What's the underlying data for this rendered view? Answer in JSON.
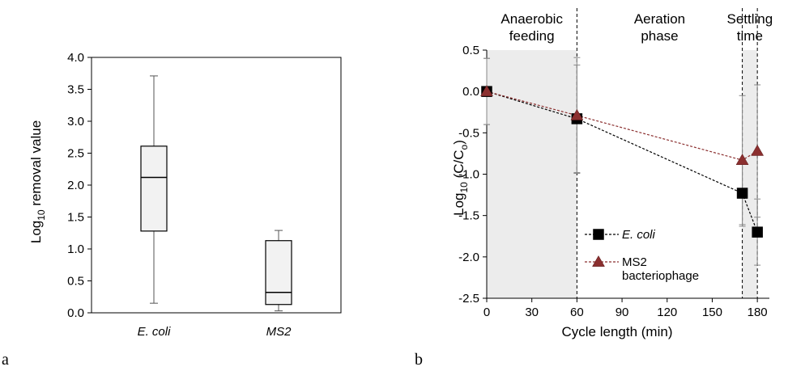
{
  "chart_data": [
    {
      "type": "box",
      "panel_label": "a",
      "ylabel": {
        "main": "Log",
        "sub": "10",
        "rest": " removal value"
      },
      "ylim": [
        0,
        4.0
      ],
      "yticks": [
        "0.0",
        "0.5",
        "1.0",
        "1.5",
        "2.0",
        "2.5",
        "3.0",
        "3.5",
        "4.0"
      ],
      "categories": [
        "E. coli",
        "MS2"
      ],
      "boxes": [
        {
          "category": "E. coli",
          "min": 0.15,
          "q1": 1.28,
          "median": 2.12,
          "q3": 2.61,
          "max": 3.71
        },
        {
          "category": "MS2",
          "min": 0.03,
          "q1": 0.13,
          "median": 0.32,
          "q3": 1.13,
          "max": 1.29
        }
      ],
      "box_fill": "#f2f2f2"
    },
    {
      "type": "line",
      "panel_label": "b",
      "xlabel": "Cycle length (min)",
      "ylabel": {
        "main": "Log",
        "sub": "10",
        "rest": " (C/C",
        "sub2": "o",
        "end": ")"
      },
      "xlim": [
        0,
        188
      ],
      "ylim": [
        -2.5,
        0.5
      ],
      "xticks": [
        "0",
        "30",
        "60",
        "90",
        "120",
        "150",
        "180"
      ],
      "yticks": [
        "-2.5",
        "-2.0",
        "-1.5",
        "-1.0",
        "-0.5",
        "0.0",
        "0.5"
      ],
      "phases": [
        {
          "line1": "Anaerobic",
          "line2": "feeding",
          "from": 0,
          "to": 60,
          "shaded": true
        },
        {
          "line1": "Aeration",
          "line2": "phase",
          "from": 60,
          "to": 170,
          "shaded": false
        },
        {
          "line1": "Settling",
          "line2": "time",
          "from": 170,
          "to": 180,
          "shaded": true
        }
      ],
      "phase_lines_x": [
        60,
        170,
        180
      ],
      "shade_color": "#ececec",
      "series": [
        {
          "name": "E. coli",
          "italic": true,
          "marker": "square",
          "color": "#000000",
          "x": [
            0,
            60,
            170,
            180
          ],
          "y": [
            0.0,
            -0.33,
            -1.23,
            -1.7
          ],
          "err": [
            0.4,
            0.65,
            0.4,
            0.4
          ]
        },
        {
          "name": "MS2",
          "name2": "bacteriophage",
          "italic": false,
          "marker": "triangle",
          "color": "#8b2f2f",
          "x": [
            0,
            60,
            170,
            180
          ],
          "y": [
            0.0,
            -0.29,
            -0.83,
            -0.72
          ],
          "err": [
            0.4,
            0.7,
            0.78,
            0.8
          ]
        }
      ]
    }
  ]
}
